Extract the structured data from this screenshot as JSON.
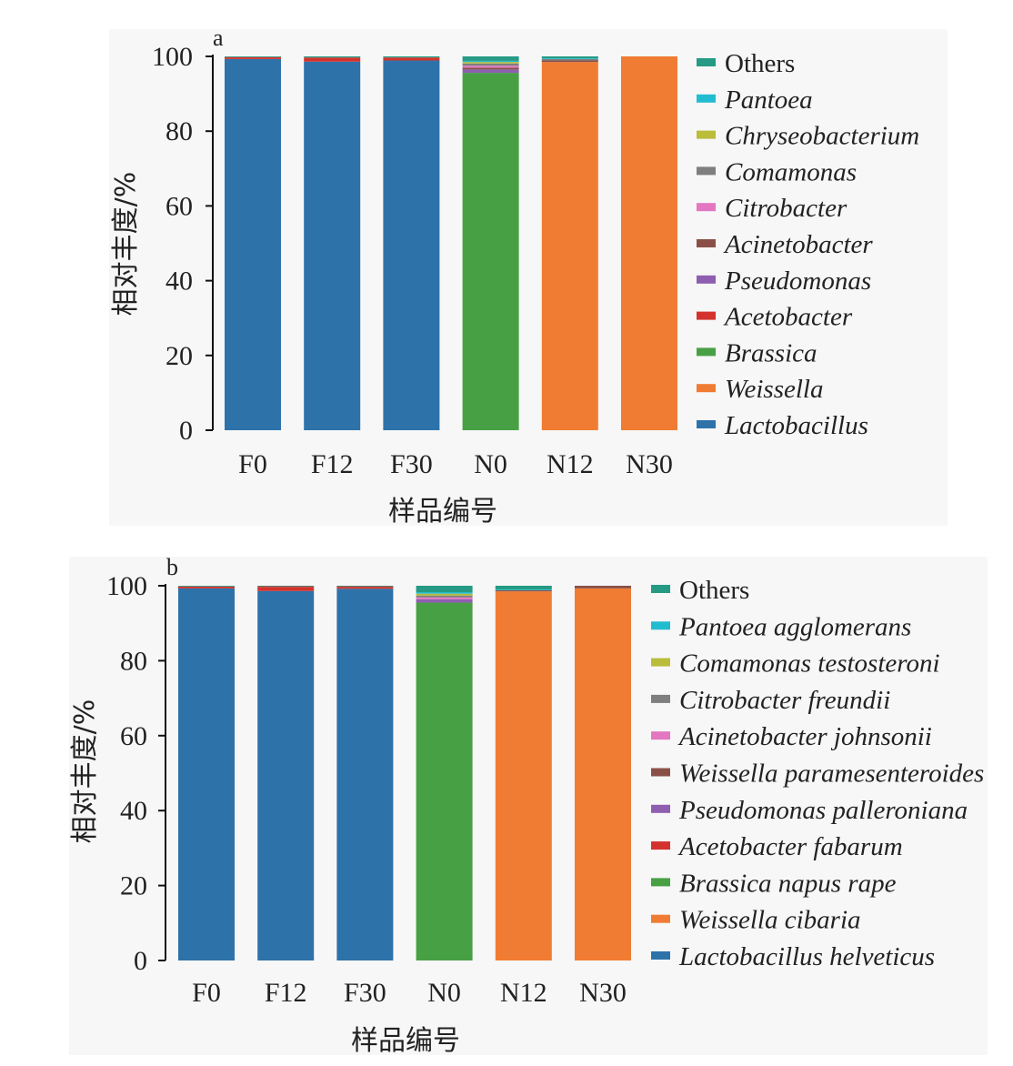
{
  "chart_data": [
    {
      "panel": "a",
      "type": "bar",
      "stacked": true,
      "categories": [
        "F0",
        "F12",
        "F30",
        "N0",
        "N12",
        "N30"
      ],
      "xlabel": "样品编号",
      "ylabel": "相对丰度/%",
      "ylim": [
        0,
        100
      ],
      "yticks": [
        0,
        20,
        40,
        60,
        80,
        100
      ],
      "legend_position": "right",
      "series": [
        {
          "name": "Lactobacillus",
          "italic": true,
          "color": "#2e72aa",
          "values": [
            99.3,
            98.6,
            98.9,
            0,
            0,
            0
          ]
        },
        {
          "name": "Weissella",
          "italic": true,
          "color": "#f07c33",
          "values": [
            0,
            0,
            0,
            0,
            98.5,
            100
          ]
        },
        {
          "name": "Brassica",
          "italic": true,
          "color": "#48a044",
          "values": [
            0,
            0,
            0,
            95.6,
            0,
            0
          ]
        },
        {
          "name": "Acetobacter",
          "italic": true,
          "color": "#d4322c",
          "values": [
            0.5,
            1.1,
            0.8,
            0,
            0,
            0
          ]
        },
        {
          "name": "Pseudomonas",
          "italic": true,
          "color": "#8e5eb0",
          "values": [
            0,
            0,
            0,
            0.9,
            0,
            0
          ]
        },
        {
          "name": "Acinetobacter",
          "italic": true,
          "color": "#8a5048",
          "values": [
            0,
            0,
            0,
            0.5,
            0.4,
            0
          ]
        },
        {
          "name": "Citrobacter",
          "italic": true,
          "color": "#e377c2",
          "values": [
            0,
            0,
            0,
            0.5,
            0,
            0
          ]
        },
        {
          "name": "Comamonas",
          "italic": true,
          "color": "#7f7f7f",
          "values": [
            0,
            0,
            0,
            0.6,
            0.4,
            0
          ]
        },
        {
          "name": "Chryseobacterium",
          "italic": true,
          "color": "#b9bd3a",
          "values": [
            0,
            0,
            0,
            0.4,
            0,
            0
          ]
        },
        {
          "name": "Pantoea",
          "italic": true,
          "color": "#22bcd0",
          "values": [
            0,
            0,
            0,
            0.3,
            0.2,
            0
          ]
        },
        {
          "name": "Others",
          "italic": false,
          "color": "#259a84",
          "values": [
            0.2,
            0.3,
            0.3,
            1.2,
            0.5,
            0
          ]
        }
      ]
    },
    {
      "panel": "b",
      "type": "bar",
      "stacked": true,
      "categories": [
        "F0",
        "F12",
        "F30",
        "N0",
        "N12",
        "N30"
      ],
      "xlabel": "样品编号",
      "ylabel": "相对丰度/%",
      "ylim": [
        0,
        100
      ],
      "yticks": [
        0,
        20,
        40,
        60,
        80,
        100
      ],
      "legend_position": "right",
      "series": [
        {
          "name": "Lactobacillus helveticus",
          "italic": true,
          "color": "#2e72aa",
          "values": [
            99.3,
            98.6,
            99.2,
            0,
            0,
            0
          ]
        },
        {
          "name": "Weissella cibaria",
          "italic": true,
          "color": "#f07c33",
          "values": [
            0,
            0,
            0,
            0,
            98.5,
            99.3
          ]
        },
        {
          "name": "Brassica napus rape",
          "italic": true,
          "color": "#48a044",
          "values": [
            0,
            0,
            0,
            95.5,
            0,
            0
          ]
        },
        {
          "name": "Acetobacter fabarum",
          "italic": true,
          "color": "#d4322c",
          "values": [
            0.5,
            1.1,
            0.5,
            0,
            0,
            0
          ]
        },
        {
          "name": "Pseudomonas palleroniana",
          "italic": true,
          "color": "#8e5eb0",
          "values": [
            0,
            0,
            0,
            0.9,
            0,
            0
          ]
        },
        {
          "name": "Weissella paramesenteroides",
          "italic": true,
          "color": "#8a5048",
          "values": [
            0,
            0.2,
            0.2,
            0,
            0.3,
            0.7
          ]
        },
        {
          "name": "Acinetobacter johnsonii",
          "italic": true,
          "color": "#e377c2",
          "values": [
            0,
            0,
            0,
            0.5,
            0,
            0
          ]
        },
        {
          "name": "Citrobacter freundii",
          "italic": true,
          "color": "#7f7f7f",
          "values": [
            0,
            0,
            0,
            0.5,
            0,
            0
          ]
        },
        {
          "name": "Comamonas testosteroni",
          "italic": true,
          "color": "#b9bd3a",
          "values": [
            0,
            0,
            0,
            0.5,
            0,
            0
          ]
        },
        {
          "name": "Pantoea agglomerans",
          "italic": true,
          "color": "#22bcd0",
          "values": [
            0,
            0,
            0,
            0.4,
            0.2,
            0
          ]
        },
        {
          "name": "Others",
          "italic": false,
          "color": "#259a84",
          "values": [
            0.2,
            0.1,
            0.1,
            1.7,
            1.0,
            0
          ]
        }
      ]
    }
  ]
}
